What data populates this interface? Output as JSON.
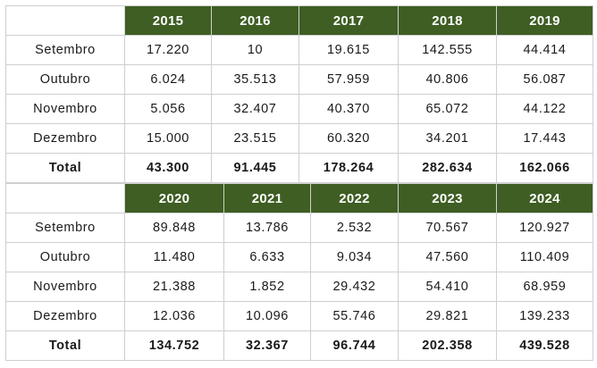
{
  "tables": [
    {
      "years": [
        "2015",
        "2016",
        "2017",
        "2018",
        "2019"
      ],
      "rows": [
        {
          "label": "Setembro",
          "values": [
            "17.220",
            "10",
            "19.615",
            "142.555",
            "44.414"
          ]
        },
        {
          "label": "Outubro",
          "values": [
            "6.024",
            "35.513",
            "57.959",
            "40.806",
            "56.087"
          ]
        },
        {
          "label": "Novembro",
          "values": [
            "5.056",
            "32.407",
            "40.370",
            "65.072",
            "44.122"
          ]
        },
        {
          "label": "Dezembro",
          "values": [
            "15.000",
            "23.515",
            "60.320",
            "34.201",
            "17.443"
          ]
        },
        {
          "label": "Total",
          "values": [
            "43.300",
            "91.445",
            "178.264",
            "282.634",
            "162.066"
          ]
        }
      ]
    },
    {
      "years": [
        "2020",
        "2021",
        "2022",
        "2023",
        "2024"
      ],
      "rows": [
        {
          "label": "Setembro",
          "values": [
            "89.848",
            "13.786",
            "2.532",
            "70.567",
            "120.927"
          ]
        },
        {
          "label": "Outubro",
          "values": [
            "11.480",
            "6.633",
            "9.034",
            "47.560",
            "110.409"
          ]
        },
        {
          "label": "Novembro",
          "values": [
            "21.388",
            "1.852",
            "29.432",
            "54.410",
            "68.959"
          ]
        },
        {
          "label": "Dezembro",
          "values": [
            "12.036",
            "10.096",
            "55.746",
            "29.821",
            "139.233"
          ]
        },
        {
          "label": "Total",
          "values": [
            "134.752",
            "32.367",
            "96.744",
            "202.358",
            "439.528"
          ]
        }
      ]
    }
  ],
  "colors": {
    "header_bg": "#3e5e23",
    "header_text": "#ffffff",
    "border": "#cfcfcf"
  }
}
